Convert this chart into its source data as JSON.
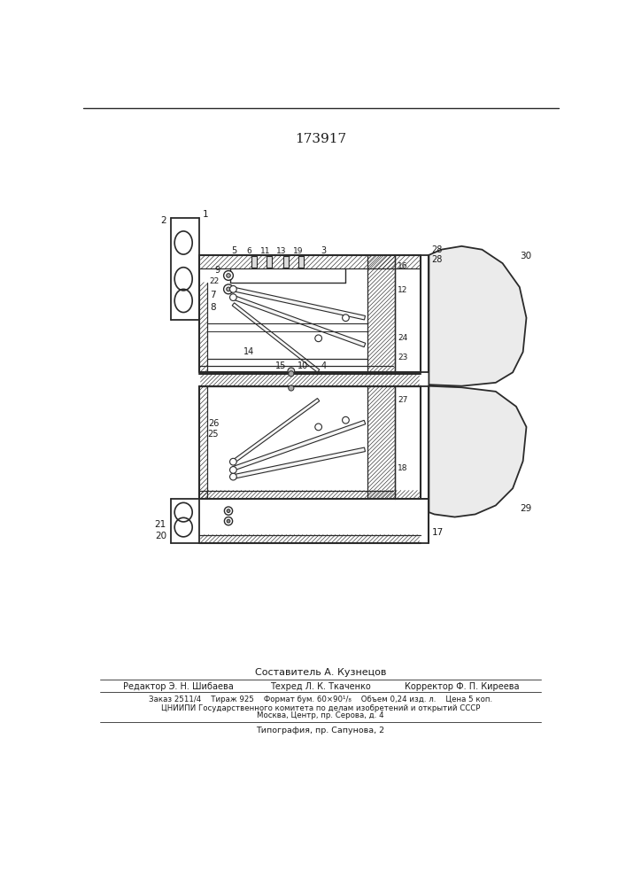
{
  "patent_number": "173917",
  "composer_line": "Составитель А. Кузнецов",
  "editor_line1": "Редактор Э. Н. Шибаева",
  "editor_line2": "Техред Л. К. Ткаченко",
  "editor_line3": "Корректор Ф. П. Киреева",
  "order_line": "Заказ 2511/4    Тираж 925    Формат бум. 60×90¹/₈    Объем 0,24 изд. л.    Цена 5 коп.",
  "tsnipi_line": "ЦНИИПИ Государственного комитета по делам изобретений и открытий СССР",
  "moscow_line": "Москва, Центр, пр. Серова, д. 4",
  "typography_line": "Типография, пр. Сапунова, 2",
  "bg_color": "#ffffff",
  "line_color": "#2a2a2a",
  "text_color": "#1a1a1a"
}
